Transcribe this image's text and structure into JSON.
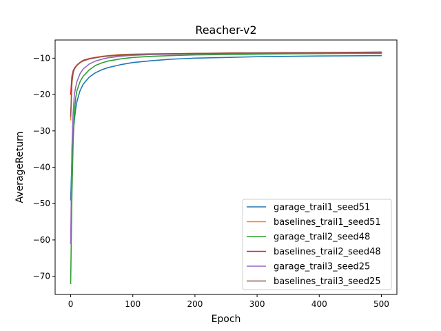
{
  "chart_data": {
    "type": "line",
    "title": "Reacher-v2",
    "xlabel": "Epoch",
    "ylabel": "AverageReturn",
    "xlim": [
      -25,
      525
    ],
    "ylim": [
      -75,
      -5
    ],
    "xticks": [
      0,
      100,
      200,
      300,
      400,
      500
    ],
    "xtick_labels": [
      "0",
      "100",
      "200",
      "300",
      "400",
      "500"
    ],
    "yticks": [
      -70,
      -60,
      -50,
      -40,
      -30,
      -20,
      -10
    ],
    "ytick_labels": [
      "−70",
      "−60",
      "−50",
      "−40",
      "−30",
      "−20",
      "−10"
    ],
    "grid": false,
    "legend_position": "lower right",
    "series": [
      {
        "name": "garage_trail1_seed51",
        "color": "#1f77b4",
        "x": [
          0,
          2,
          4,
          6,
          8,
          10,
          15,
          20,
          30,
          40,
          50,
          60,
          80,
          100,
          130,
          160,
          200,
          250,
          300,
          350,
          400,
          450,
          500
        ],
        "y": [
          -49,
          -38,
          -31,
          -27,
          -24,
          -22,
          -19,
          -17.2,
          -15.2,
          -14,
          -13.2,
          -12.6,
          -11.8,
          -11.2,
          -10.7,
          -10.3,
          -10.0,
          -9.8,
          -9.6,
          -9.5,
          -9.4,
          -9.35,
          -9.3
        ]
      },
      {
        "name": "baselines_trail1_seed51",
        "color": "#ff7f0e",
        "x": [
          0,
          2,
          4,
          6,
          8,
          10,
          15,
          20,
          30,
          40,
          50,
          60,
          80,
          100,
          130,
          160,
          200,
          250,
          300,
          350,
          400,
          450,
          500
        ],
        "y": [
          -27,
          -17,
          -14,
          -13,
          -12.5,
          -12,
          -11.3,
          -10.8,
          -10.2,
          -9.8,
          -9.5,
          -9.3,
          -9.0,
          -8.9,
          -8.8,
          -8.75,
          -8.7,
          -8.65,
          -8.6,
          -8.55,
          -8.5,
          -8.45,
          -8.4
        ]
      },
      {
        "name": "garage_trail2_seed48",
        "color": "#2ca02c",
        "x": [
          0,
          2,
          4,
          6,
          8,
          10,
          15,
          20,
          30,
          40,
          50,
          60,
          80,
          100,
          130,
          160,
          200,
          250,
          300,
          350,
          400,
          450,
          500
        ],
        "y": [
          -72,
          -48,
          -33,
          -25,
          -21,
          -19,
          -16.5,
          -15,
          -13.2,
          -12,
          -11.3,
          -10.8,
          -10.2,
          -9.8,
          -9.5,
          -9.3,
          -9.1,
          -9.0,
          -8.9,
          -8.8,
          -8.75,
          -8.7,
          -8.7
        ]
      },
      {
        "name": "baselines_trail2_seed48",
        "color": "#d62728",
        "x": [
          0,
          2,
          4,
          6,
          8,
          10,
          15,
          20,
          30,
          40,
          50,
          60,
          80,
          100,
          130,
          160,
          200,
          250,
          300,
          350,
          400,
          450,
          500
        ],
        "y": [
          -20,
          -15,
          -13.5,
          -12.8,
          -12.3,
          -11.9,
          -11.2,
          -10.6,
          -10.1,
          -9.8,
          -9.6,
          -9.4,
          -9.2,
          -9.0,
          -8.9,
          -8.8,
          -8.7,
          -8.6,
          -8.55,
          -8.5,
          -8.45,
          -8.4,
          -8.3
        ]
      },
      {
        "name": "garage_trail3_seed25",
        "color": "#9467bd",
        "x": [
          0,
          2,
          4,
          6,
          8,
          10,
          15,
          20,
          30,
          40,
          50,
          60,
          80,
          100,
          130,
          160,
          200,
          250,
          300,
          350,
          400,
          450,
          500
        ],
        "y": [
          -61,
          -35,
          -25,
          -20,
          -18,
          -16.5,
          -14.3,
          -13,
          -11.6,
          -10.8,
          -10.3,
          -9.9,
          -9.5,
          -9.2,
          -9.0,
          -8.9,
          -8.8,
          -8.7,
          -8.6,
          -8.55,
          -8.5,
          -8.45,
          -8.4
        ]
      },
      {
        "name": "baselines_trail3_seed25",
        "color": "#8c564b",
        "x": [
          0,
          2,
          4,
          6,
          8,
          10,
          15,
          20,
          30,
          40,
          50,
          60,
          80,
          100,
          130,
          160,
          200,
          250,
          300,
          350,
          400,
          450,
          500
        ],
        "y": [
          -26,
          -16.5,
          -14,
          -13,
          -12.4,
          -12,
          -11.2,
          -10.7,
          -10.2,
          -9.9,
          -9.6,
          -9.4,
          -9.1,
          -8.95,
          -8.85,
          -8.8,
          -8.7,
          -8.65,
          -8.6,
          -8.55,
          -8.5,
          -8.45,
          -8.4
        ]
      }
    ]
  }
}
